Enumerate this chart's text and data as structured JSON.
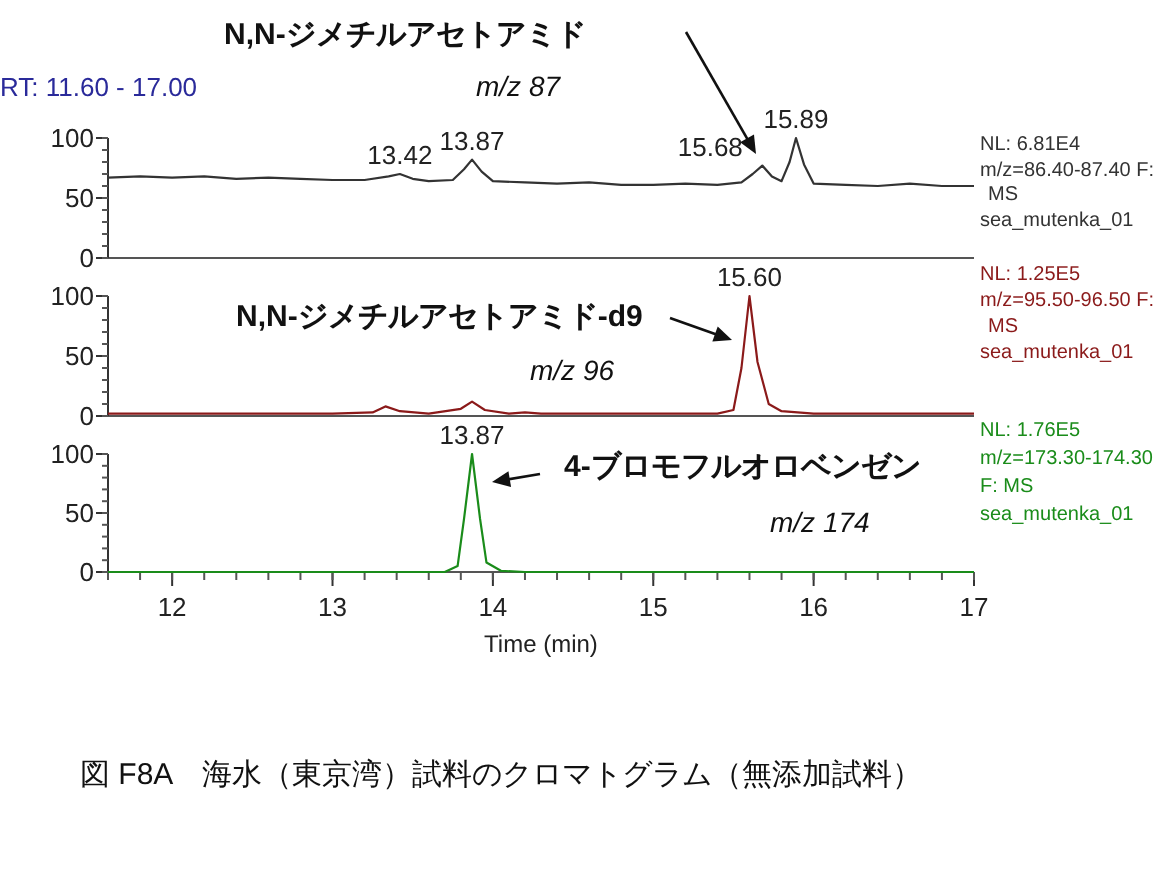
{
  "chart_data": [
    {
      "type": "line",
      "xlim": [
        11.6,
        17
      ],
      "ylim": [
        0,
        100
      ],
      "yticks": [
        0,
        50,
        100
      ],
      "tick_labels": "y",
      "x": [
        11.6,
        11.8,
        12.0,
        12.2,
        12.4,
        12.6,
        12.8,
        13.0,
        13.2,
        13.35,
        13.42,
        13.5,
        13.6,
        13.75,
        13.82,
        13.87,
        13.93,
        14.0,
        14.2,
        14.4,
        14.6,
        14.8,
        15.0,
        15.2,
        15.4,
        15.55,
        15.62,
        15.68,
        15.74,
        15.8,
        15.85,
        15.89,
        15.94,
        16.0,
        16.2,
        16.4,
        16.6,
        16.8,
        17.0
      ],
      "series": [
        {
          "color": "#333333",
          "values": [
            67,
            68,
            67,
            68,
            66,
            67,
            66,
            65,
            65,
            68,
            70,
            66,
            64,
            65,
            74,
            82,
            72,
            64,
            63,
            62,
            63,
            61,
            61,
            62,
            61,
            63,
            70,
            77,
            68,
            64,
            80,
            100,
            78,
            62,
            61,
            60,
            62,
            60,
            60
          ]
        }
      ],
      "annotations": [
        "RT: 11.60 - 17.00",
        "N,N-ジメチルアセトアミド",
        "m/z 87",
        {
          "text": "13.42",
          "x": 13.42,
          "y": 70
        },
        {
          "text": "13.87",
          "x": 13.87,
          "y": 82
        },
        {
          "text": "15.68",
          "x": 15.68,
          "y": 77
        },
        {
          "text": "15.89",
          "x": 15.89,
          "y": 100
        },
        "NL: 6.81E4",
        "m/z=86.40-87.40 F:",
        "MS",
        "sea_mutenka_01"
      ]
    },
    {
      "type": "line",
      "xlim": [
        11.6,
        17
      ],
      "ylim": [
        0,
        100
      ],
      "yticks": [
        0,
        50,
        100
      ],
      "tick_labels": "y",
      "x": [
        11.6,
        12.0,
        12.5,
        13.0,
        13.25,
        13.33,
        13.42,
        13.6,
        13.8,
        13.87,
        13.95,
        14.1,
        14.2,
        14.3,
        15.0,
        15.4,
        15.5,
        15.55,
        15.6,
        15.65,
        15.72,
        15.8,
        16.0,
        16.5,
        17.0
      ],
      "series": [
        {
          "color": "#8b1a1a",
          "values": [
            2,
            2,
            2,
            2,
            3,
            8,
            4,
            2,
            6,
            12,
            5,
            2,
            3,
            2,
            2,
            2,
            5,
            40,
            100,
            45,
            10,
            4,
            2,
            2,
            2
          ]
        }
      ],
      "annotations": [
        "N,N-ジメチルアセトアミド-d9",
        "m/z 96",
        {
          "text": "15.60",
          "x": 15.6,
          "y": 100
        },
        "NL: 1.25E5",
        "m/z=95.50-96.50 F:",
        "MS",
        "sea_mutenka_01"
      ]
    },
    {
      "type": "line",
      "xlim": [
        11.6,
        17
      ],
      "ylim": [
        0,
        100
      ],
      "yticks": [
        0,
        50,
        100
      ],
      "xticks": [
        12,
        13,
        14,
        15,
        16,
        17
      ],
      "xlabel": "Time (min)",
      "x": [
        11.6,
        13.7,
        13.78,
        13.82,
        13.87,
        13.92,
        13.96,
        14.05,
        14.2,
        17.0
      ],
      "series": [
        {
          "color": "#1a8c1a",
          "values": [
            0,
            0,
            5,
            45,
            100,
            45,
            8,
            1,
            0,
            0
          ]
        }
      ],
      "annotations": [
        "4-ブロモフルオロベンゼン",
        "m/z 174",
        {
          "text": "13.87",
          "x": 13.87,
          "y": 100
        },
        "NL: 1.76E5",
        "m/z=173.30-174.30",
        "F:   MS",
        "sea_mutenka_01",
        "図 F8A　海水（東京湾）試料のクロマトグラム（無添加試料）"
      ]
    }
  ]
}
